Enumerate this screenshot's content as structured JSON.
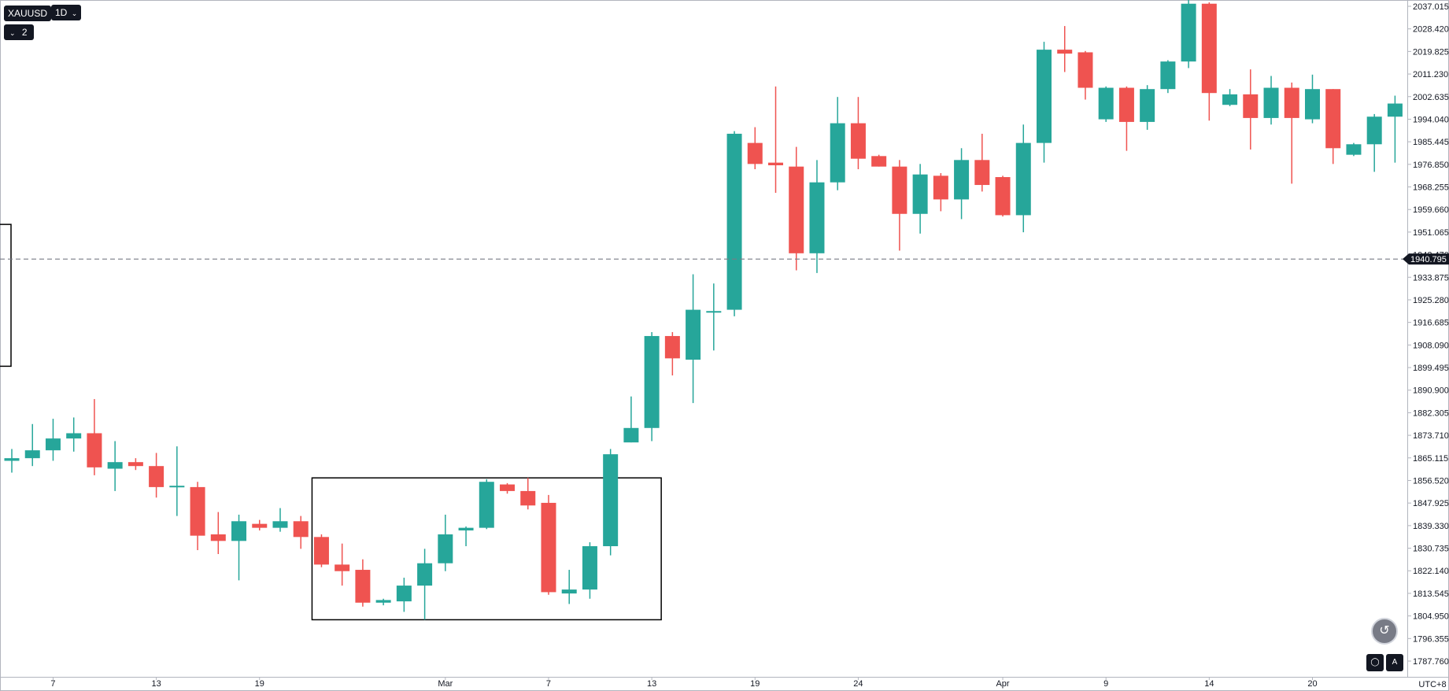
{
  "toolbar": {
    "symbol": "XAUUSD",
    "interval": "1D",
    "indicator_count": "2"
  },
  "axis": {
    "timezone": "UTC+8",
    "current_price_label": "1940.795"
  },
  "colors": {
    "up": "#26a69a",
    "down": "#ef5350",
    "axis_text": "#131722",
    "price_line": "#787b86"
  },
  "chart_data": {
    "type": "candlestick",
    "title": "",
    "ylim": [
      1783.0,
      2040.0
    ],
    "y_ticks": [
      "2037.015",
      "2028.420",
      "2019.825",
      "2011.230",
      "2002.635",
      "1994.040",
      "1985.445",
      "1976.850",
      "1968.255",
      "1959.660",
      "1951.065",
      "1942.470",
      "1933.875",
      "1925.280",
      "1916.685",
      "1908.090",
      "1899.495",
      "1890.900",
      "1882.305",
      "1873.710",
      "1865.115",
      "1856.520",
      "1847.925",
      "1839.330",
      "1830.735",
      "1822.140",
      "1813.545",
      "1804.950",
      "1796.355",
      "1787.760"
    ],
    "x_ticks": [
      {
        "index": 2,
        "label": "7"
      },
      {
        "index": 7,
        "label": "13"
      },
      {
        "index": 12,
        "label": "19"
      },
      {
        "index": 21,
        "label": "Mar"
      },
      {
        "index": 26,
        "label": "7"
      },
      {
        "index": 31,
        "label": "13"
      },
      {
        "index": 36,
        "label": "19"
      },
      {
        "index": 41,
        "label": "24"
      },
      {
        "index": 48,
        "label": "Apr"
      },
      {
        "index": 53,
        "label": "9"
      },
      {
        "index": 58,
        "label": "14"
      },
      {
        "index": 63,
        "label": "20"
      }
    ],
    "current_price": 1940.795,
    "highlight_box": {
      "from_index": 15,
      "to_index": 31,
      "high": 1857.5,
      "low": 1803.5
    },
    "left_box": {
      "high": 1954.0,
      "low": 1900.0
    },
    "candles": [
      {
        "o": 1864.0,
        "h": 1868.5,
        "l": 1859.5,
        "c": 1865.0
      },
      {
        "o": 1865.0,
        "h": 1878.0,
        "l": 1862.0,
        "c": 1868.0
      },
      {
        "o": 1868.0,
        "h": 1880.0,
        "l": 1864.0,
        "c": 1872.5
      },
      {
        "o": 1872.5,
        "h": 1880.5,
        "l": 1867.5,
        "c": 1874.5
      },
      {
        "o": 1874.5,
        "h": 1887.5,
        "l": 1858.5,
        "c": 1861.5
      },
      {
        "o": 1861.0,
        "h": 1871.5,
        "l": 1852.5,
        "c": 1863.5
      },
      {
        "o": 1863.5,
        "h": 1865.0,
        "l": 1860.5,
        "c": 1862.0
      },
      {
        "o": 1862.0,
        "h": 1867.0,
        "l": 1850.0,
        "c": 1854.0
      },
      {
        "o": 1854.0,
        "h": 1869.5,
        "l": 1843.0,
        "c": 1854.5
      },
      {
        "o": 1854.0,
        "h": 1856.0,
        "l": 1830.0,
        "c": 1835.5
      },
      {
        "o": 1836.0,
        "h": 1844.5,
        "l": 1828.5,
        "c": 1833.5
      },
      {
        "o": 1833.5,
        "h": 1843.5,
        "l": 1818.5,
        "c": 1841.0
      },
      {
        "o": 1840.0,
        "h": 1841.5,
        "l": 1837.5,
        "c": 1838.5
      },
      {
        "o": 1838.5,
        "h": 1846.0,
        "l": 1837.0,
        "c": 1841.0
      },
      {
        "o": 1841.0,
        "h": 1843.0,
        "l": 1830.5,
        "c": 1835.0
      },
      {
        "o": 1835.0,
        "h": 1836.0,
        "l": 1823.5,
        "c": 1824.5
      },
      {
        "o": 1824.5,
        "h": 1832.5,
        "l": 1816.5,
        "c": 1822.0
      },
      {
        "o": 1822.5,
        "h": 1826.5,
        "l": 1808.5,
        "c": 1810.0
      },
      {
        "o": 1810.0,
        "h": 1811.5,
        "l": 1809.0,
        "c": 1811.0
      },
      {
        "o": 1810.5,
        "h": 1819.5,
        "l": 1806.5,
        "c": 1816.5
      },
      {
        "o": 1816.5,
        "h": 1830.5,
        "l": 1803.5,
        "c": 1825.0
      },
      {
        "o": 1825.0,
        "h": 1843.5,
        "l": 1822.0,
        "c": 1836.0
      },
      {
        "o": 1837.5,
        "h": 1839.0,
        "l": 1831.5,
        "c": 1838.5
      },
      {
        "o": 1838.5,
        "h": 1857.0,
        "l": 1838.0,
        "c": 1856.0
      },
      {
        "o": 1855.0,
        "h": 1855.5,
        "l": 1851.5,
        "c": 1852.5
      },
      {
        "o": 1852.5,
        "h": 1857.5,
        "l": 1845.5,
        "c": 1847.0
      },
      {
        "o": 1848.0,
        "h": 1851.0,
        "l": 1813.0,
        "c": 1814.0
      },
      {
        "o": 1813.5,
        "h": 1822.5,
        "l": 1809.5,
        "c": 1815.0
      },
      {
        "o": 1815.0,
        "h": 1833.0,
        "l": 1811.5,
        "c": 1831.5
      },
      {
        "o": 1831.5,
        "h": 1868.5,
        "l": 1828.0,
        "c": 1866.5
      },
      {
        "o": 1871.0,
        "h": 1888.5,
        "l": 1871.0,
        "c": 1876.5
      },
      {
        "o": 1876.5,
        "h": 1913.0,
        "l": 1871.5,
        "c": 1911.5
      },
      {
        "o": 1911.5,
        "h": 1913.0,
        "l": 1896.5,
        "c": 1903.0
      },
      {
        "o": 1902.5,
        "h": 1935.0,
        "l": 1886.0,
        "c": 1921.5
      },
      {
        "o": 1921.0,
        "h": 1931.5,
        "l": 1906.0,
        "c": 1921.0
      },
      {
        "o": 1921.5,
        "h": 1989.5,
        "l": 1919.0,
        "c": 1988.5
      },
      {
        "o": 1985.0,
        "h": 1991.0,
        "l": 1975.0,
        "c": 1977.0
      },
      {
        "o": 1977.5,
        "h": 2006.5,
        "l": 1966.0,
        "c": 1976.5
      },
      {
        "o": 1976.0,
        "h": 1983.5,
        "l": 1936.5,
        "c": 1943.0
      },
      {
        "o": 1943.0,
        "h": 1978.5,
        "l": 1935.5,
        "c": 1970.0
      },
      {
        "o": 1970.0,
        "h": 2002.5,
        "l": 1967.0,
        "c": 1992.5
      },
      {
        "o": 1992.5,
        "h": 2002.5,
        "l": 1975.0,
        "c": 1979.0
      },
      {
        "o": 1980.0,
        "h": 1980.5,
        "l": 1976.0,
        "c": 1976.0
      },
      {
        "o": 1976.0,
        "h": 1978.5,
        "l": 1944.0,
        "c": 1958.0
      },
      {
        "o": 1958.0,
        "h": 1977.0,
        "l": 1950.5,
        "c": 1973.0
      },
      {
        "o": 1972.5,
        "h": 1973.5,
        "l": 1959.0,
        "c": 1963.5
      },
      {
        "o": 1963.5,
        "h": 1983.0,
        "l": 1956.0,
        "c": 1978.5
      },
      {
        "o": 1978.5,
        "h": 1988.5,
        "l": 1966.5,
        "c": 1969.0
      },
      {
        "o": 1972.0,
        "h": 1972.5,
        "l": 1957.0,
        "c": 1957.5
      },
      {
        "o": 1957.5,
        "h": 1992.0,
        "l": 1951.0,
        "c": 1985.0
      },
      {
        "o": 1985.0,
        "h": 2023.5,
        "l": 1977.5,
        "c": 2020.5
      },
      {
        "o": 2020.5,
        "h": 2029.5,
        "l": 2012.0,
        "c": 2019.0
      },
      {
        "o": 2019.5,
        "h": 2020.0,
        "l": 2001.5,
        "c": 2006.0
      },
      {
        "o": 1994.0,
        "h": 2006.5,
        "l": 1993.0,
        "c": 2006.0
      },
      {
        "o": 2006.0,
        "h": 2006.5,
        "l": 1982.0,
        "c": 1993.0
      },
      {
        "o": 1993.0,
        "h": 2007.0,
        "l": 1990.0,
        "c": 2005.5
      },
      {
        "o": 2005.5,
        "h": 2016.5,
        "l": 2004.0,
        "c": 2016.0
      },
      {
        "o": 2016.0,
        "h": 2041.5,
        "l": 2013.5,
        "c": 2038.0
      },
      {
        "o": 2038.0,
        "h": 2038.5,
        "l": 1993.5,
        "c": 2004.0
      },
      {
        "o": 1999.5,
        "h": 2005.5,
        "l": 1999.0,
        "c": 2003.5
      },
      {
        "o": 2003.5,
        "h": 2013.0,
        "l": 1982.5,
        "c": 1994.5
      },
      {
        "o": 1994.5,
        "h": 2010.5,
        "l": 1992.0,
        "c": 2006.0
      },
      {
        "o": 2006.0,
        "h": 2008.0,
        "l": 1969.5,
        "c": 1994.5
      },
      {
        "o": 1994.0,
        "h": 2011.0,
        "l": 1992.5,
        "c": 2005.5
      },
      {
        "o": 2005.5,
        "h": 2005.5,
        "l": 1977.0,
        "c": 1983.0
      },
      {
        "o": 1980.5,
        "h": 1985.0,
        "l": 1980.0,
        "c": 1984.5
      },
      {
        "o": 1984.5,
        "h": 1996.0,
        "l": 1974.0,
        "c": 1995.0
      },
      {
        "o": 1995.0,
        "h": 2003.0,
        "l": 1977.5,
        "c": 2000.0
      }
    ]
  }
}
